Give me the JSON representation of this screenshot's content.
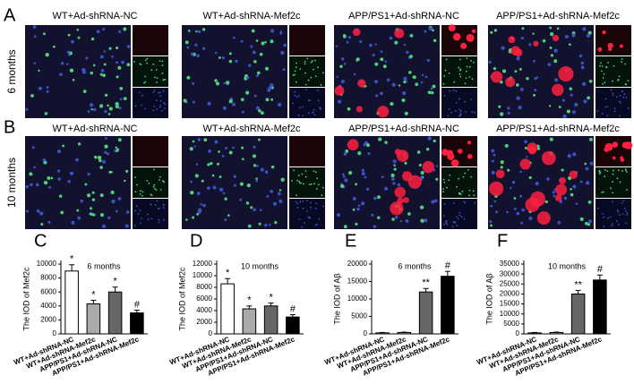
{
  "image_rows": [
    {
      "label": "A",
      "side_label": "6 months",
      "captions": [
        "WT+Ad-shRNA-NC",
        "WT+Ad-shRNA-Mef2c",
        "APP/PS1+Ad-shRNA-NC",
        "APP/PS1+Ad-shRNA-Mef2c"
      ]
    },
    {
      "label": "B",
      "side_label": "10 months",
      "captions": [
        "WT+Ad-shRNA-NC",
        "WT+Ad-shRNA-Mef2c",
        "APP/PS1+Ad-shRNA-NC",
        "APP/PS1+Ad-shRNA-Mef2c"
      ]
    }
  ],
  "chart_data": [
    {
      "type": "bar",
      "panel": "C",
      "title": "6 months",
      "ylabel": "The IOD of Mef2c",
      "categories": [
        "WT+Ad-shRNA-NC",
        "WT+Ad-shRNA-Mef2c",
        "APP/PS1+Ad-shRNA-NC",
        "APP/PS1+Ad-shRNA-Mef2c"
      ],
      "values": [
        9000,
        4300,
        6000,
        3000
      ],
      "errors": [
        900,
        500,
        700,
        400
      ],
      "annotations": [
        "*",
        "*",
        "*",
        "#"
      ],
      "colors": [
        "#ffffff",
        "#aaaaaa",
        "#666666",
        "#000000"
      ],
      "ylim": [
        0,
        10000
      ],
      "yticks": [
        0,
        2000,
        4000,
        6000,
        8000,
        10000
      ]
    },
    {
      "type": "bar",
      "panel": "D",
      "title": "10 months",
      "ylabel": "The IOD of Mef2c",
      "categories": [
        "WT+Ad-shRNA-NC",
        "WT+Ad-shRNA-Mef2c",
        "APP/PS1+Ad-shRNA-NC",
        "APP/PS1+Ad-shRNA-Mef2c"
      ],
      "values": [
        8600,
        4300,
        4800,
        2900
      ],
      "errors": [
        900,
        500,
        500,
        400
      ],
      "annotations": [
        "*",
        "*",
        "*",
        "#"
      ],
      "colors": [
        "#ffffff",
        "#aaaaaa",
        "#666666",
        "#000000"
      ],
      "ylim": [
        0,
        12000
      ],
      "yticks": [
        0,
        2000,
        4000,
        6000,
        8000,
        10000,
        12000
      ]
    },
    {
      "type": "bar",
      "panel": "E",
      "title": "6 months",
      "ylabel": "The IOD of Aβ",
      "categories": [
        "WT+Ad-shRNA-NC",
        "WT+Ad-shRNA-Mef2c",
        "APP/PS1+Ad-shRNA-NC",
        "APP/PS1+Ad-shRNA-Mef2c"
      ],
      "values": [
        300,
        400,
        12000,
        16500
      ],
      "errors": [
        100,
        100,
        1000,
        1400
      ],
      "annotations": [
        null,
        null,
        "**",
        "#"
      ],
      "colors": [
        "#ffffff",
        "#aaaaaa",
        "#666666",
        "#000000"
      ],
      "ylim": [
        0,
        20000
      ],
      "yticks": [
        0,
        5000,
        10000,
        15000,
        20000
      ]
    },
    {
      "type": "bar",
      "panel": "F",
      "title": "10 months",
      "ylabel": "The IOD of Aβ",
      "categories": [
        "WT+Ad-shRNA-NC",
        "WT+Ad-shRNA-Mef2c",
        "APP/PS1+Ad-shRNA-NC",
        "APP/PS1+Ad-shRNA-Mef2c"
      ],
      "values": [
        500,
        700,
        20000,
        27000
      ],
      "errors": [
        200,
        200,
        1800,
        2500
      ],
      "annotations": [
        null,
        null,
        "**",
        "#"
      ],
      "colors": [
        "#ffffff",
        "#aaaaaa",
        "#666666",
        "#000000"
      ],
      "ylim": [
        0,
        35000
      ],
      "yticks": [
        0,
        5000,
        10000,
        15000,
        20000,
        25000,
        30000,
        35000
      ]
    }
  ]
}
